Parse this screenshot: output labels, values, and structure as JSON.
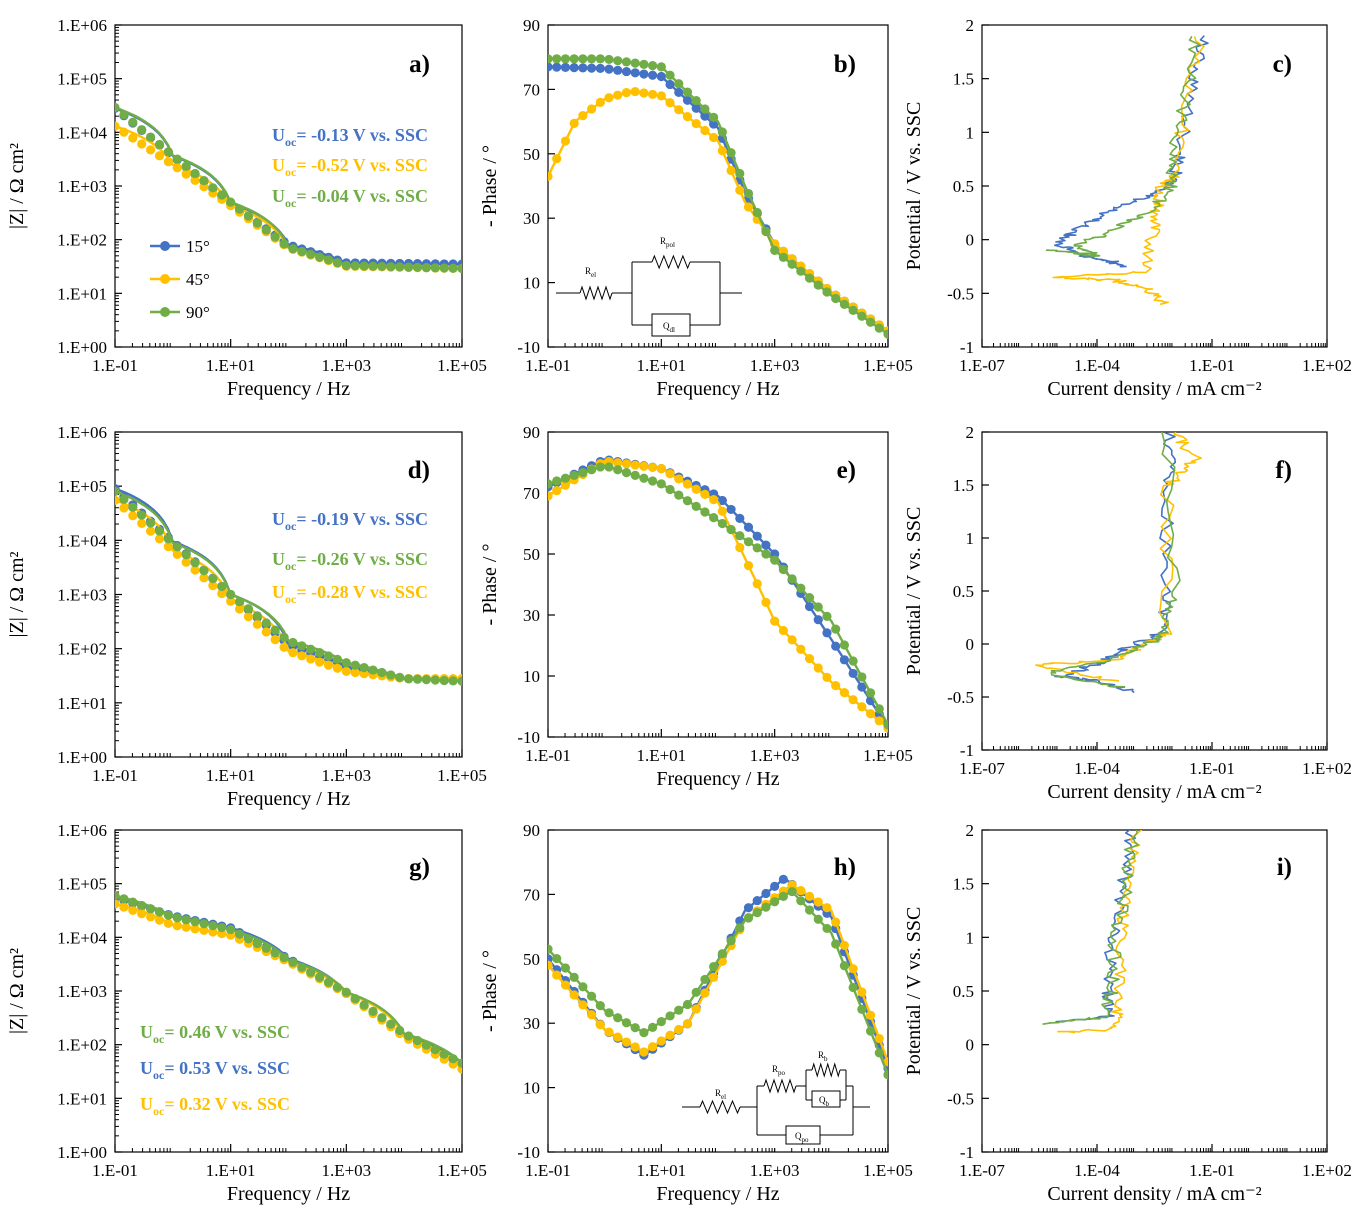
{
  "colors": {
    "s15": "#4472C4",
    "s45": "#FFC000",
    "s90": "#70AD47"
  },
  "chart_data": [
    {
      "id": "a",
      "type": "line",
      "label": "a)",
      "xscale": "log",
      "yscale": "log",
      "xlim": [
        0.1,
        100000
      ],
      "ylim": [
        1,
        1000000
      ],
      "xticks": [
        "1.E-01",
        "1.E+01",
        "1.E+03",
        "1.E+05"
      ],
      "yticks": [
        "1.E+00",
        "1.E+01",
        "1.E+02",
        "1.E+03",
        "1.E+04",
        "1.E+05",
        "1.E+06"
      ],
      "xlabel": "Frequency  / Hz",
      "ylabel": "|Z| / Ω cm²",
      "legend": {
        "position": "bottom-left",
        "entries": [
          "15°",
          "45°",
          "90°"
        ]
      },
      "annotations": [
        {
          "prefix": "U",
          "sub": "oc",
          "text": "= -0.13 V vs. SSC",
          "color": "s15"
        },
        {
          "prefix": "U",
          "sub": "oc",
          "text": "= -0.52 V vs. SSC",
          "color": "s45"
        },
        {
          "prefix": "U",
          "sub": "oc",
          "text": "= -0.04 V vs. SSC",
          "color": "s90"
        }
      ],
      "series": [
        {
          "name": "15°",
          "color": "s15",
          "x": [
            0.1,
            1,
            10,
            100,
            1000,
            100000
          ],
          "y": [
            28000,
            3600,
            480,
            80,
            37,
            35
          ]
        },
        {
          "name": "45°",
          "color": "s45",
          "x": [
            0.1,
            1,
            10,
            100,
            1000,
            100000
          ],
          "y": [
            13000,
            2500,
            430,
            70,
            32,
            29
          ]
        },
        {
          "name": "90°",
          "color": "s90",
          "x": [
            0.1,
            1,
            10,
            100,
            1000,
            100000
          ],
          "y": [
            29000,
            3700,
            500,
            72,
            33,
            29
          ]
        }
      ]
    },
    {
      "id": "b",
      "type": "line",
      "label": "b)",
      "xscale": "log",
      "yscale": "linear",
      "xlim": [
        0.1,
        100000
      ],
      "ylim": [
        -10,
        90
      ],
      "xticks": [
        "1.E-01",
        "1.E+01",
        "1.E+03",
        "1.E+05"
      ],
      "yticks": [
        "-10",
        "10",
        "30",
        "50",
        "70",
        "90"
      ],
      "xlabel": "Frequency  / Hz",
      "ylabel": "- Phase  / °",
      "circuit": {
        "r1": "R",
        "r1_sub": "el",
        "r2": "R",
        "r2_sub": "pol",
        "q": "Q",
        "q_sub": "dl"
      },
      "series": [
        {
          "name": "15°",
          "color": "s15",
          "x": [
            0.1,
            1,
            10,
            100,
            300,
            1000,
            10000,
            100000
          ],
          "y": [
            77,
            76.5,
            74,
            58,
            38,
            22,
            7,
            -5
          ]
        },
        {
          "name": "45°",
          "color": "s45",
          "x": [
            0.1,
            0.3,
            1,
            3,
            10,
            100,
            300,
            1000,
            10000,
            100000
          ],
          "y": [
            43,
            60,
            67,
            69.5,
            68,
            54,
            35,
            22,
            7,
            -5
          ]
        },
        {
          "name": "90°",
          "color": "s90",
          "x": [
            0.1,
            1,
            10,
            100,
            300,
            1000,
            10000,
            100000
          ],
          "y": [
            79.5,
            79.5,
            77,
            60,
            40,
            20,
            6,
            -6
          ]
        }
      ]
    },
    {
      "id": "c",
      "type": "line",
      "label": "c)",
      "xscale": "log",
      "yscale": "linear",
      "xlim": [
        1e-07,
        100
      ],
      "ylim": [
        -1,
        2
      ],
      "xticks": [
        "1.E-07",
        "1.E-04",
        "1.E-01",
        "1.E+02"
      ],
      "yticks": [
        "-1",
        "-0.5",
        "0",
        "0.5",
        "1",
        "1.5",
        "2"
      ],
      "xlabel": "Current density  / mA cm⁻²",
      "ylabel": "Potential / V vs. SSC",
      "series": [
        {
          "name": "15°",
          "color": "s15",
          "x": [
            0.0006,
            0.0002,
            5e-05,
            1e-05,
            3e-05,
            0.0002,
            0.002,
            0.01,
            0.015,
            0.03,
            0.06
          ],
          "y": [
            -0.25,
            -0.2,
            -0.15,
            -0.05,
            0.1,
            0.25,
            0.4,
            0.55,
            0.8,
            1.4,
            1.9
          ]
        },
        {
          "name": "45°",
          "color": "s45",
          "x": [
            0.006,
            0.002,
            0.0003,
            1e-05,
            0.002,
            0.003,
            0.004,
            0.005,
            0.01,
            0.02,
            0.05
          ],
          "y": [
            -0.6,
            -0.45,
            -0.38,
            -0.35,
            -0.3,
            0.1,
            0.3,
            0.5,
            0.6,
            1.2,
            1.9
          ]
        },
        {
          "name": "90°",
          "color": "s90",
          "x": [
            5e-06,
            0.0001,
            3e-05,
            0.0003,
            0.002,
            0.008,
            0.01,
            0.02,
            0.04
          ],
          "y": [
            -0.1,
            -0.15,
            -0.05,
            0.1,
            0.25,
            0.45,
            0.8,
            1.3,
            1.9
          ]
        }
      ]
    },
    {
      "id": "d",
      "type": "line",
      "label": "d)",
      "xscale": "log",
      "yscale": "log",
      "xlim": [
        0.1,
        100000
      ],
      "ylim": [
        1,
        1000000
      ],
      "xticks": [
        "1.E-01",
        "1.E+01",
        "1.E+03",
        "1.E+05"
      ],
      "yticks": [
        "1.E+00",
        "1.E+01",
        "1.E+02",
        "1.E+03",
        "1.E+04",
        "1.E+05",
        "1.E+06"
      ],
      "xlabel": "Frequency  / Hz",
      "ylabel": "|Z| / Ω cm²",
      "annotations": [
        {
          "prefix": "U",
          "sub": "oc",
          "text": "= -0.19 V vs. SSC",
          "color": "s15"
        },
        {
          "prefix": "U",
          "sub": "oc",
          "text": "= -0.26 V vs. SSC",
          "color": "s90"
        },
        {
          "prefix": "U",
          "sub": "oc",
          "text": "= -0.28 V vs. SSC",
          "color": "s45"
        }
      ],
      "series": [
        {
          "name": "15°",
          "color": "s15",
          "x": [
            0.1,
            1,
            10,
            100,
            1000,
            10000,
            100000
          ],
          "y": [
            90000,
            9500,
            1000,
            120,
            45,
            28,
            27
          ]
        },
        {
          "name": "45°",
          "color": "s45",
          "x": [
            0.1,
            1,
            10,
            100,
            1000,
            10000,
            100000
          ],
          "y": [
            55000,
            6500,
            750,
            90,
            38,
            28,
            28
          ]
        },
        {
          "name": "90°",
          "color": "s90",
          "x": [
            0.1,
            1,
            10,
            100,
            1000,
            10000,
            100000
          ],
          "y": [
            80000,
            9000,
            1000,
            140,
            55,
            28,
            25
          ]
        }
      ]
    },
    {
      "id": "e",
      "type": "line",
      "label": "e)",
      "xscale": "log",
      "yscale": "linear",
      "xlim": [
        0.1,
        100000
      ],
      "ylim": [
        -10,
        90
      ],
      "xticks": [
        "1.E-01",
        "1.E+01",
        "1.E+03",
        "1.E+05"
      ],
      "yticks": [
        "-10",
        "10",
        "30",
        "50",
        "70",
        "90"
      ],
      "xlabel": "Frequency  / Hz",
      "ylabel": "- Phase  / °",
      "series": [
        {
          "name": "15°",
          "color": "s15",
          "x": [
            0.1,
            1,
            10,
            100,
            1000,
            10000,
            100000
          ],
          "y": [
            72,
            81,
            78,
            69,
            50,
            22,
            -7
          ]
        },
        {
          "name": "45°",
          "color": "s45",
          "x": [
            0.1,
            1,
            10,
            100,
            500,
            1000,
            10000,
            100000
          ],
          "y": [
            69,
            80.5,
            78,
            67,
            40,
            28,
            8,
            -7
          ]
        },
        {
          "name": "90°",
          "color": "s90",
          "x": [
            0.1,
            1,
            10,
            100,
            1000,
            10000,
            100000
          ],
          "y": [
            73,
            79,
            73,
            61,
            48,
            28,
            -6
          ]
        }
      ]
    },
    {
      "id": "f",
      "type": "line",
      "label": "f)",
      "xscale": "log",
      "yscale": "linear",
      "xlim": [
        1e-07,
        100
      ],
      "ylim": [
        -1,
        2
      ],
      "xticks": [
        "1.E-07",
        "1.E-04",
        "1.E-01",
        "1.E+02"
      ],
      "yticks": [
        "-1",
        "-0.5",
        "0",
        "0.5",
        "1",
        "1.5",
        "2"
      ],
      "xlabel": "Current density  / mA cm⁻²",
      "ylabel": "Potential / V vs. SSC",
      "series": [
        {
          "name": "15°",
          "color": "s15",
          "x": [
            0.0008,
            0.0001,
            1e-05,
            0.0001,
            0.0005,
            0.005,
            0.006,
            0.007,
            0.008
          ],
          "y": [
            -0.45,
            -0.35,
            -0.3,
            -0.2,
            -0.05,
            0.1,
            0.5,
            1.5,
            2.0
          ]
        },
        {
          "name": "45°",
          "color": "s45",
          "x": [
            0.0003,
            2e-06,
            0.0003,
            0.002,
            0.006,
            0.007,
            0.04,
            0.01
          ],
          "y": [
            -0.35,
            -0.2,
            -0.15,
            0.0,
            0.1,
            1.5,
            1.75,
            2.0
          ]
        },
        {
          "name": "90°",
          "color": "s90",
          "x": [
            0.0004,
            5e-06,
            0.0002,
            0.002,
            0.006,
            0.01,
            0.007
          ],
          "y": [
            -0.4,
            -0.28,
            -0.15,
            0.0,
            0.1,
            0.5,
            2.0
          ]
        }
      ]
    },
    {
      "id": "g",
      "type": "line",
      "label": "g)",
      "xscale": "log",
      "yscale": "log",
      "xlim": [
        0.1,
        100000
      ],
      "ylim": [
        1,
        1000000
      ],
      "xticks": [
        "1.E-01",
        "1.E+01",
        "1.E+03",
        "1.E+05"
      ],
      "yticks": [
        "1.E+00",
        "1.E+01",
        "1.E+02",
        "1.E+03",
        "1.E+04",
        "1.E+05",
        "1.E+06"
      ],
      "xlabel": "Frequency  / Hz",
      "ylabel": "|Z| / Ω cm²",
      "annotations": [
        {
          "prefix": "U",
          "sub": "oc",
          "text": "= 0.46 V vs. SSC",
          "color": "s90"
        },
        {
          "prefix": "U",
          "sub": "oc",
          "text": "= 0.53 V vs. SSC",
          "color": "s15"
        },
        {
          "prefix": "U",
          "sub": "oc",
          "text": "= 0.32 V vs. SSC",
          "color": "s45"
        }
      ],
      "series": [
        {
          "name": "15°",
          "color": "s15",
          "x": [
            0.1,
            1,
            10,
            100,
            1000,
            10000,
            100000
          ],
          "y": [
            55000,
            25000,
            15000,
            4000,
            900,
            150,
            45
          ]
        },
        {
          "name": "45°",
          "color": "s45",
          "x": [
            0.1,
            1,
            10,
            100,
            1000,
            10000,
            100000
          ],
          "y": [
            42000,
            17000,
            11000,
            3500,
            900,
            140,
            35
          ]
        },
        {
          "name": "90°",
          "color": "s90",
          "x": [
            0.1,
            1,
            10,
            100,
            1000,
            10000,
            100000
          ],
          "y": [
            60000,
            24000,
            14000,
            3800,
            950,
            160,
            45
          ]
        }
      ]
    },
    {
      "id": "h",
      "type": "line",
      "label": "h)",
      "xscale": "log",
      "yscale": "linear",
      "xlim": [
        0.1,
        100000
      ],
      "ylim": [
        -10,
        90
      ],
      "xticks": [
        "1.E-01",
        "1.E+01",
        "1.E+03",
        "1.E+05"
      ],
      "yticks": [
        "-10",
        "10",
        "30",
        "50",
        "70",
        "90"
      ],
      "xlabel": "Frequency  / Hz",
      "ylabel": "- Phase  / °",
      "circuit": {
        "r1": "R",
        "r1_sub": "el",
        "r2": "R",
        "r2_sub": "po",
        "r3": "R",
        "r3_sub": "b",
        "q1": "Q",
        "q1_sub": "b",
        "q2": "Q",
        "q2_sub": "po"
      },
      "series": [
        {
          "name": "15°",
          "color": "s15",
          "x": [
            0.1,
            1,
            5,
            30,
            300,
            1500,
            10000,
            100000
          ],
          "y": [
            50,
            28,
            20,
            30,
            65,
            75,
            63,
            16
          ]
        },
        {
          "name": "45°",
          "color": "s45",
          "x": [
            0.1,
            1,
            5,
            30,
            300,
            2000,
            10000,
            100000
          ],
          "y": [
            48,
            28,
            21,
            30,
            62,
            73,
            65,
            18
          ]
        },
        {
          "name": "90°",
          "color": "s90",
          "x": [
            0.1,
            1,
            5,
            30,
            300,
            2000,
            10000,
            100000
          ],
          "y": [
            53,
            34,
            27,
            36,
            62,
            71,
            58,
            14
          ]
        }
      ]
    },
    {
      "id": "i",
      "type": "line",
      "label": "i)",
      "xscale": "log",
      "yscale": "linear",
      "xlim": [
        1e-07,
        100
      ],
      "ylim": [
        -1,
        2
      ],
      "xticks": [
        "1.E-07",
        "1.E-04",
        "1.E-01",
        "1.E+02"
      ],
      "yticks": [
        "-1",
        "-0.5",
        "0",
        "0.5",
        "1",
        "1.5",
        "2"
      ],
      "xlabel": "Current density  / mA cm⁻²",
      "ylabel": "Potential / V vs. SSC",
      "series": [
        {
          "name": "15°",
          "color": "s15",
          "x": [
            1e-05,
            0.0002,
            0.0002,
            0.00025,
            0.0005,
            0.0008
          ],
          "y": [
            0.22,
            0.26,
            0.5,
            1.0,
            1.5,
            2.0
          ]
        },
        {
          "name": "45°",
          "color": "s45",
          "x": [
            1e-05,
            0.0003,
            0.0004,
            0.0004,
            0.0007,
            0.0011
          ],
          "y": [
            0.11,
            0.15,
            0.4,
            1.0,
            1.5,
            2.0
          ]
        },
        {
          "name": "90°",
          "color": "s90",
          "x": [
            5e-06,
            0.00015,
            0.00025,
            0.0003,
            0.0006,
            0.0009
          ],
          "y": [
            0.2,
            0.25,
            0.5,
            1.0,
            1.5,
            2.0
          ]
        }
      ]
    }
  ]
}
